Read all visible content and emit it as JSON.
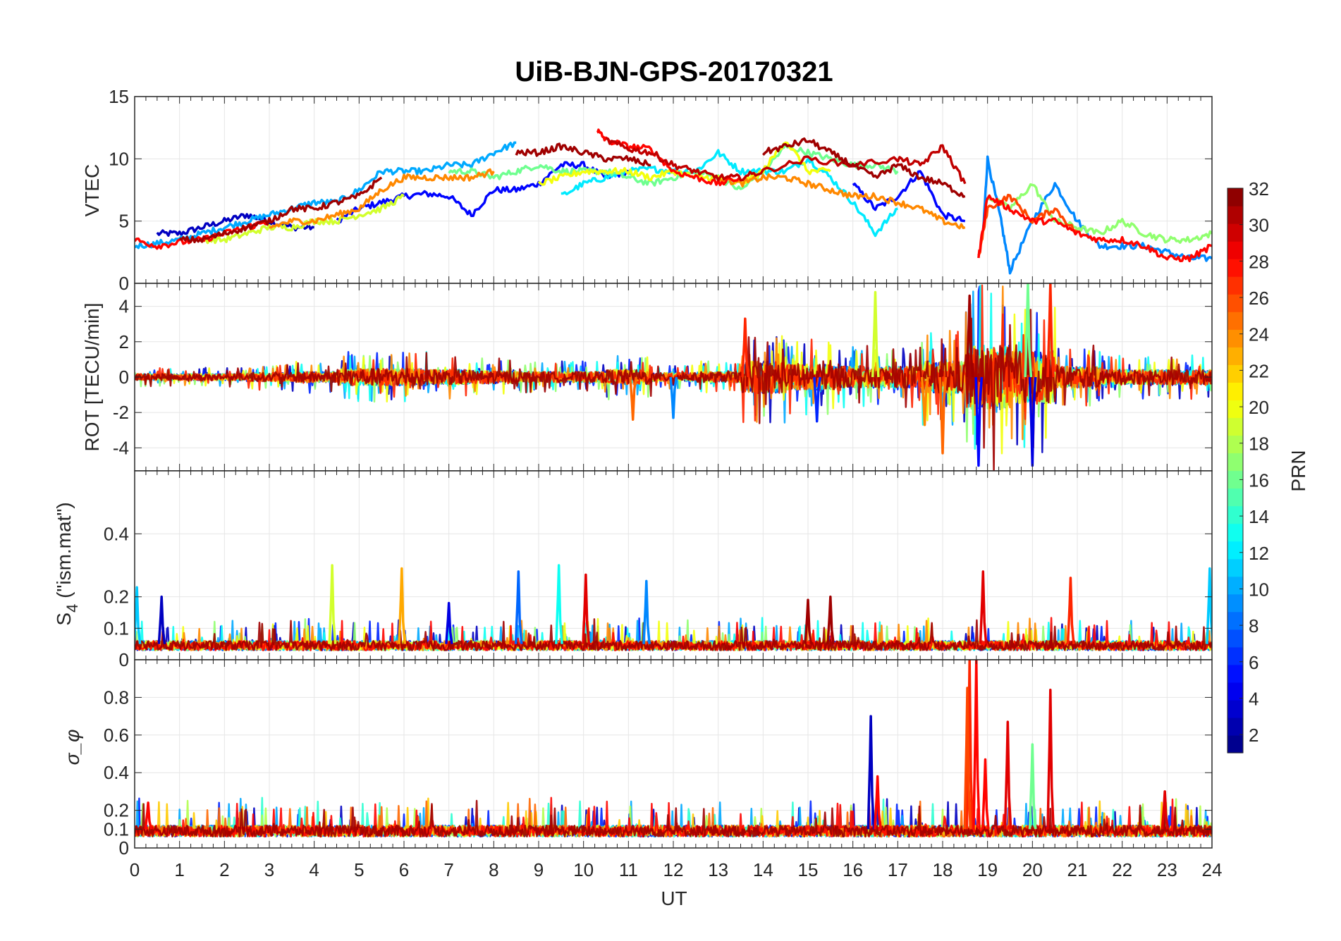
{
  "chart_data": {
    "type": "line",
    "title": "UiB-BJN-GPS-20170321",
    "xlabel": "UT",
    "xlim": [
      0,
      24
    ],
    "xticks": [
      0,
      1,
      2,
      3,
      4,
      5,
      6,
      7,
      8,
      9,
      10,
      11,
      12,
      13,
      14,
      15,
      16,
      17,
      18,
      19,
      20,
      21,
      22,
      23,
      24
    ],
    "grid": true,
    "colorbar": {
      "label": "PRN",
      "range": [
        1,
        32
      ],
      "ticks": [
        2,
        4,
        6,
        8,
        10,
        12,
        14,
        16,
        18,
        20,
        22,
        24,
        26,
        28,
        30,
        32
      ],
      "colormap": "jet",
      "placement": "right"
    },
    "panels": [
      {
        "name": "vtec",
        "ylabel": "VTEC",
        "ylim": [
          0,
          15
        ],
        "yticks": [
          0,
          5,
          10,
          15
        ],
        "series": [
          {
            "prn": 3,
            "x": [
              0.5,
              1,
              1.5,
              2,
              2.5,
              3,
              3.5,
              4
            ],
            "y": [
              4,
              4,
              4.5,
              5,
              5.5,
              5,
              4.5,
              4.5
            ]
          },
          {
            "prn": 5,
            "x": [
              4.5,
              5,
              5.5,
              6,
              6.5,
              7,
              7.5,
              8,
              8.5,
              9,
              9.5,
              10,
              10.5,
              11
            ],
            "y": [
              5,
              6,
              6.5,
              7,
              7.2,
              7,
              5.5,
              7.5,
              7.5,
              8,
              9.5,
              9.5,
              8.5,
              9
            ]
          },
          {
            "prn": 5,
            "x": [
              16,
              16.5,
              17,
              17.5,
              18,
              18.5
            ],
            "y": [
              8,
              6,
              7,
              9,
              5.5,
              5
            ]
          },
          {
            "prn": 9,
            "x": [
              18.9,
              19,
              19.3,
              19.5,
              20,
              20.5,
              21,
              21.5,
              22,
              22.5,
              23,
              23.5,
              24
            ],
            "y": [
              4,
              10,
              5,
              1,
              5,
              8,
              5,
              3,
              3,
              3,
              2.5,
              2,
              2
            ]
          },
          {
            "prn": 10,
            "x": [
              0,
              0.5,
              1,
              1.5,
              2,
              2.5,
              3,
              3.5,
              4,
              4.5,
              5,
              5.5,
              6,
              6.5,
              7,
              7.5,
              8,
              8.5
            ],
            "y": [
              3,
              3.2,
              3.5,
              4,
              4.5,
              5,
              5.5,
              6,
              6.5,
              6.5,
              7.5,
              9,
              9,
              9,
              9.5,
              9.5,
              10.5,
              11.3
            ]
          },
          {
            "prn": 12,
            "x": [
              9.5,
              10,
              10.5,
              11,
              11.5,
              12,
              12.5,
              13,
              13.5,
              14,
              14.5,
              15,
              15.5,
              16,
              16.5,
              17
            ],
            "y": [
              7,
              8,
              8.5,
              9,
              9.2,
              9,
              9,
              10.5,
              9,
              9,
              9,
              10,
              8.5,
              6.5,
              4,
              6
            ]
          },
          {
            "prn": 16,
            "x": [
              7,
              7.5,
              8,
              8.5,
              9,
              9.5,
              10,
              10.5,
              11,
              11.5,
              12,
              12.5,
              13,
              13.5,
              14,
              14.5,
              15,
              15.5,
              16,
              16.5,
              17
            ],
            "y": [
              9,
              9,
              8.5,
              9,
              9.5,
              9,
              9,
              9,
              8.5,
              8,
              8.5,
              9,
              8.5,
              7.5,
              9,
              11,
              10.5,
              10,
              9.5,
              9.5,
              9
            ]
          },
          {
            "prn": 17,
            "x": [
              19,
              19.5,
              20,
              20.5,
              21,
              21.5,
              22,
              22.5,
              23,
              23.5,
              24
            ],
            "y": [
              7,
              6,
              8,
              5,
              4.5,
              4,
              5,
              4,
              3.5,
              3.5,
              4
            ]
          },
          {
            "prn": 19,
            "x": [
              1.5,
              2,
              2.5,
              3,
              3.5,
              4,
              4.5,
              5,
              5.5,
              6
            ],
            "y": [
              3.5,
              3.5,
              4,
              4.5,
              4.5,
              5,
              5,
              5.5,
              6,
              7
            ]
          },
          {
            "prn": 20,
            "x": [
              9,
              9.5,
              10,
              10.5,
              11,
              11.5,
              12,
              12.5,
              13,
              13.5,
              14,
              14.5,
              15,
              15.5
            ],
            "y": [
              8,
              8.5,
              9,
              9,
              9,
              8.5,
              9,
              8.5,
              8.5,
              8,
              9,
              11.5,
              9,
              9
            ]
          },
          {
            "prn": 24,
            "x": [
              3,
              3.5,
              4,
              4.5,
              5,
              5.5,
              6,
              6.5,
              7,
              7.5,
              8
            ],
            "y": [
              4.5,
              5,
              5,
              5.5,
              6,
              7.5,
              8.5,
              8.5,
              8.5,
              8.5,
              9
            ]
          },
          {
            "prn": 24,
            "x": [
              13,
              13.5,
              14,
              14.5,
              15,
              15.5,
              16,
              16.5,
              17,
              17.5,
              18,
              18.5
            ],
            "y": [
              8.5,
              8,
              8.5,
              8.5,
              8,
              7.5,
              7,
              7,
              6.5,
              6,
              5,
              4.5
            ]
          },
          {
            "prn": 26,
            "x": [
              18.8,
              19,
              19.5,
              20,
              20.5,
              21
            ],
            "y": [
              2,
              6,
              7,
              5,
              6,
              4
            ]
          },
          {
            "prn": 28,
            "x": [
              0,
              0.5,
              1,
              1.5,
              2,
              2.5,
              3
            ],
            "y": [
              3.5,
              3,
              3.3,
              3.5,
              4,
              4.5,
              5
            ]
          },
          {
            "prn": 28,
            "x": [
              10.3,
              10.5,
              11,
              11.5,
              12,
              12.5,
              13,
              13.5
            ],
            "y": [
              12.3,
              11.5,
              11,
              10.8,
              9,
              8.5,
              8,
              8.5
            ]
          },
          {
            "prn": 28,
            "x": [
              18.8,
              19,
              19.5,
              20,
              20.5,
              21,
              21.5,
              22,
              22.5,
              23,
              23.5,
              24
            ],
            "y": [
              2,
              7,
              6,
              5,
              5,
              4,
              3.5,
              3.5,
              3,
              2,
              2,
              3
            ]
          },
          {
            "prn": 30,
            "x": [
              10.5,
              11,
              11.5,
              12,
              12.5,
              13,
              13.5,
              14,
              15,
              16,
              17,
              17.5,
              18,
              18.5
            ],
            "y": [
              11.5,
              10.8,
              10.5,
              9.5,
              9,
              8.5,
              8.5,
              9,
              10,
              9.5,
              10,
              9.5,
              11,
              8
            ]
          },
          {
            "prn": 31,
            "x": [
              1,
              1.5,
              2,
              2.5,
              3,
              3.5,
              4,
              4.5,
              5,
              5.5
            ],
            "y": [
              3.5,
              3.5,
              4,
              4.5,
              5,
              6,
              6,
              6.5,
              7,
              8.5
            ]
          },
          {
            "prn": 31,
            "x": [
              8.5,
              9,
              9.5,
              10,
              10.5,
              11,
              11.5
            ],
            "y": [
              10.5,
              10.5,
              11,
              10.5,
              10,
              10,
              9.5
            ]
          },
          {
            "prn": 31,
            "x": [
              14,
              14.5,
              15,
              15.5,
              16,
              16.5,
              17,
              17.5,
              18,
              18.5
            ],
            "y": [
              10.5,
              11,
              11.5,
              10.5,
              9.5,
              8.5,
              9.5,
              8.5,
              8,
              7
            ]
          }
        ]
      },
      {
        "name": "rot",
        "ylabel": "ROT [TECU/min]",
        "ylim": [
          -5.3,
          5.3
        ],
        "yticks": [
          -4,
          -2,
          0,
          2,
          4
        ],
        "hourly_amplitude": [
          0.3,
          0.3,
          0.3,
          0.4,
          0.5,
          0.8,
          0.8,
          0.7,
          0.6,
          0.5,
          0.5,
          0.7,
          0.4,
          0.5,
          1.5,
          1.2,
          1,
          1,
          1.5,
          3,
          2.5,
          1,
          0.7,
          0.7,
          0.7
        ],
        "prns": [
          3,
          6,
          10,
          13,
          17,
          20,
          24,
          27,
          31
        ],
        "spikes": [
          {
            "prn": 27,
            "x": 13.6,
            "y": 3.3
          },
          {
            "prn": 6,
            "x": 15.2,
            "y": -2.5
          },
          {
            "prn": 19,
            "x": 16.5,
            "y": 4.8
          },
          {
            "prn": 24,
            "x": 17.6,
            "y": -2.7
          },
          {
            "prn": 25,
            "x": 18.0,
            "y": -4.3
          },
          {
            "prn": 31,
            "x": 18.6,
            "y": 4.6
          },
          {
            "prn": 5,
            "x": 18.8,
            "y": -5
          },
          {
            "prn": 16,
            "x": 19.9,
            "y": 5.3
          },
          {
            "prn": 4,
            "x": 20.0,
            "y": -5
          },
          {
            "prn": 27,
            "x": 20.4,
            "y": 5.3
          },
          {
            "prn": 25,
            "x": 11.1,
            "y": -2.4
          },
          {
            "prn": 9,
            "x": 12.0,
            "y": -2.3
          }
        ]
      },
      {
        "name": "s4",
        "ylabel": "S4 (\"ism.mat\")",
        "ylim": [
          0,
          0.6
        ],
        "yticks": [
          0,
          0.1,
          0.2,
          0.4
        ],
        "baseline": 0.05,
        "prns": [
          3,
          6,
          10,
          13,
          17,
          20,
          24,
          28,
          31
        ],
        "spikes": [
          {
            "prn": 11,
            "x": 0.05,
            "y": 0.23
          },
          {
            "prn": 3,
            "x": 0.6,
            "y": 0.2
          },
          {
            "prn": 19,
            "x": 4.4,
            "y": 0.3
          },
          {
            "prn": 23,
            "x": 5.95,
            "y": 0.29
          },
          {
            "prn": 8,
            "x": 8.55,
            "y": 0.28
          },
          {
            "prn": 13,
            "x": 9.45,
            "y": 0.3
          },
          {
            "prn": 29,
            "x": 10.05,
            "y": 0.27
          },
          {
            "prn": 9,
            "x": 11.4,
            "y": 0.25
          },
          {
            "prn": 31,
            "x": 15.5,
            "y": 0.2
          },
          {
            "prn": 29,
            "x": 18.9,
            "y": 0.28
          },
          {
            "prn": 27,
            "x": 20.85,
            "y": 0.26
          },
          {
            "prn": 11,
            "x": 23.95,
            "y": 0.29
          },
          {
            "prn": 4,
            "x": 7.0,
            "y": 0.18
          },
          {
            "prn": 31,
            "x": 15.0,
            "y": 0.19
          }
        ]
      },
      {
        "name": "sigma_phi",
        "ylabel": "σ_φ",
        "ylim": [
          0,
          1
        ],
        "yticks": [
          0,
          0.1,
          0.2,
          0.4,
          0.6,
          0.8
        ],
        "baseline": 0.1,
        "prns": [
          3,
          6,
          10,
          14,
          18,
          22,
          25,
          28,
          31
        ],
        "spikes": [
          {
            "prn": 28,
            "x": 0.3,
            "y": 0.24
          },
          {
            "prn": 3,
            "x": 16.4,
            "y": 0.7
          },
          {
            "prn": 28,
            "x": 16.55,
            "y": 0.38
          },
          {
            "prn": 27,
            "x": 18.6,
            "y": 1.0
          },
          {
            "prn": 28,
            "x": 18.75,
            "y": 1.0
          },
          {
            "prn": 26,
            "x": 18.55,
            "y": 0.85
          },
          {
            "prn": 29,
            "x": 19.45,
            "y": 0.67
          },
          {
            "prn": 16,
            "x": 20.0,
            "y": 0.55
          },
          {
            "prn": 29,
            "x": 20.4,
            "y": 0.84
          },
          {
            "prn": 29,
            "x": 22.95,
            "y": 0.3
          },
          {
            "prn": 28,
            "x": 18.95,
            "y": 0.47
          }
        ]
      }
    ]
  }
}
